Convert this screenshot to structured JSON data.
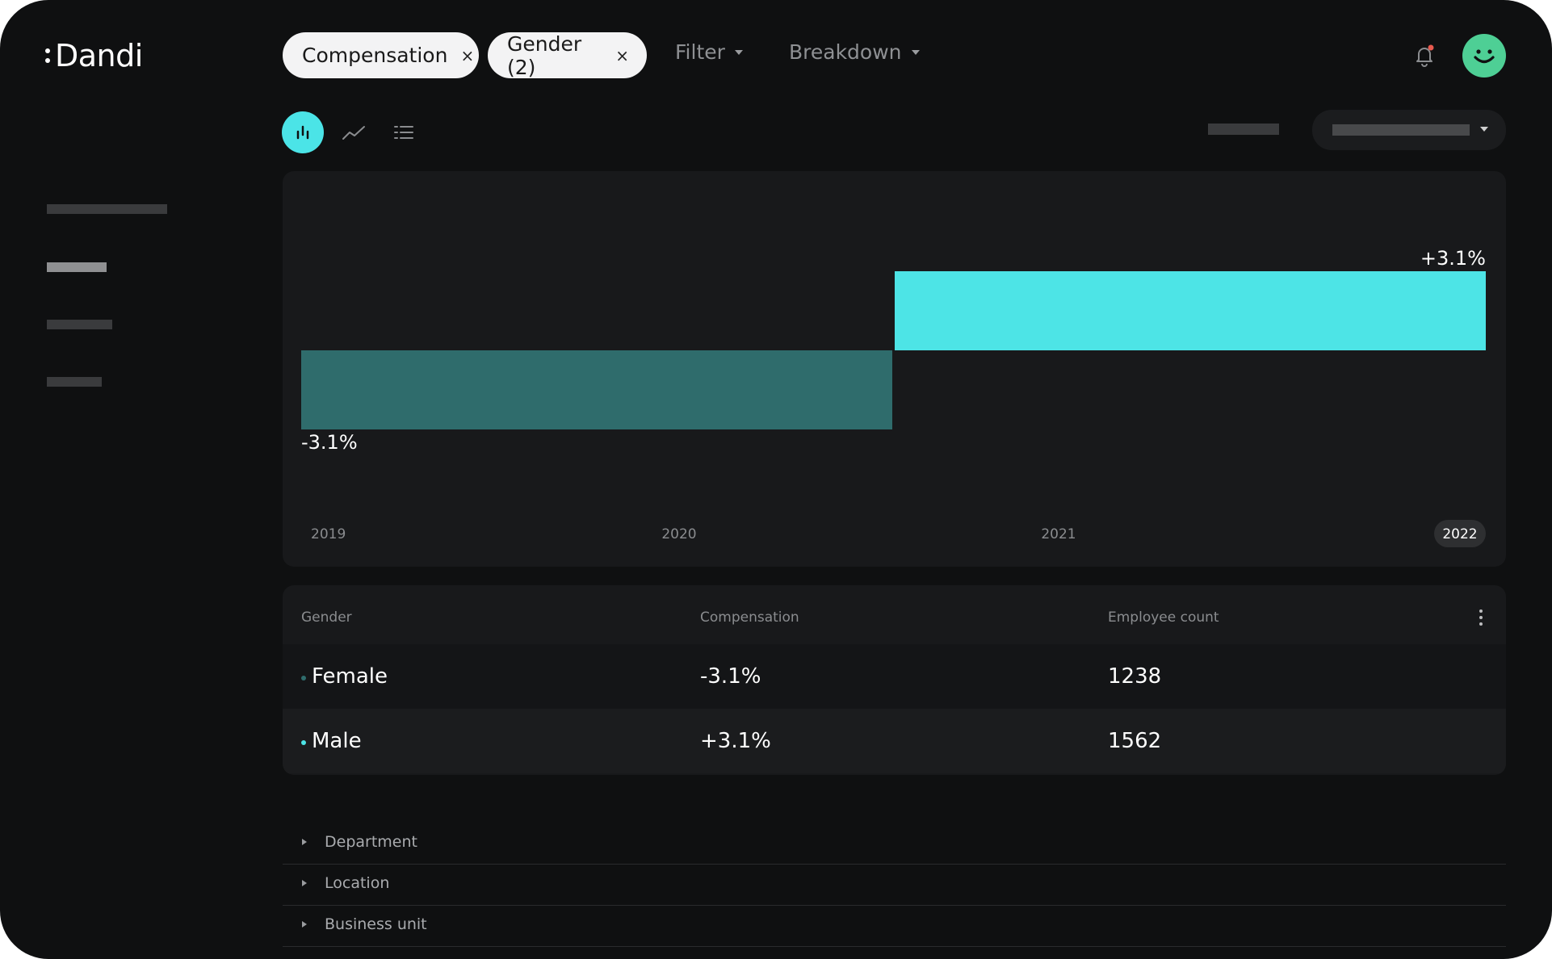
{
  "app": {
    "logo_text": "Dandi"
  },
  "filters": {
    "chips": [
      {
        "label": "Compensation",
        "close": "×"
      },
      {
        "label": "Gender (2)",
        "close": "×"
      }
    ],
    "filter_label": "Filter",
    "breakdown_label": "Breakdown"
  },
  "icons": {
    "bell": "bell-icon",
    "avatar": "smiley-avatar-icon",
    "bar_view": "bar-chart-icon",
    "line_view": "line-chart-icon",
    "list_view": "list-icon",
    "more": "kebab-menu-icon",
    "expand": "triangle-right-icon"
  },
  "colors": {
    "accent": "#4be4e7",
    "female_series": "#2f6c6c",
    "male_series": "#4de4e6",
    "background": "#0f1011",
    "panel": "#18191b",
    "avatar": "#4ecf95",
    "notification_dot": "#e85a4f"
  },
  "chart_data": {
    "type": "bar",
    "title": "",
    "xlabel": "",
    "ylabel": "",
    "x_ticks": [
      "2019",
      "2020",
      "2021",
      "2022"
    ],
    "selected_tick": "2022",
    "series": [
      {
        "name": "Female",
        "value": -3.1,
        "label": "-3.1%"
      },
      {
        "name": "Male",
        "value": 3.1,
        "label": "+3.1%"
      }
    ],
    "ylim": [
      -6.2,
      6.2
    ],
    "grid": false
  },
  "table": {
    "headers": [
      "Gender",
      "Compensation",
      "Employee count"
    ],
    "rows": [
      {
        "gender": "Female",
        "compensation": "-3.1%",
        "employee_count": "1238"
      },
      {
        "gender": "Male",
        "compensation": "+3.1%",
        "employee_count": "1562"
      }
    ]
  },
  "breakdowns": [
    "Department",
    "Location",
    "Business unit"
  ]
}
